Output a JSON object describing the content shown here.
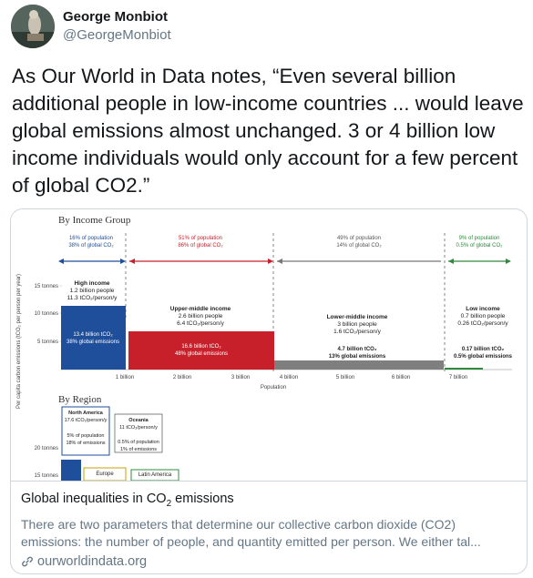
{
  "author": {
    "name": "George Monbiot",
    "handle": "@GeorgeMonbiot"
  },
  "tweet": {
    "text": "As Our World in Data notes, “Even several billion additional people in low-income countries ... would leave global emissions almost unchanged. 3 or 4 billion low income individuals would only account for a few percent of global CO2.”"
  },
  "card": {
    "title_prefix": "Global inequalities in CO",
    "title_sub": "2",
    "title_suffix": " emissions",
    "description": "There are two parameters that determine our collective carbon dioxide (CO2) emissions: the number of people, and quantity emitted per person. We either tal...",
    "domain": "ourworldindata.org",
    "link_icon": "link-icon"
  },
  "figure": {
    "income_heading": "By Income Group",
    "region_heading": "By Region",
    "y_axis_label": "Per capita carbon emissions (tCO₂ per person per year)",
    "y_ticks": [
      "15 tonnes",
      "10 tonnes",
      "5 tonnes"
    ],
    "x_ticks": [
      "1 billion",
      "2 billion",
      "3 billion",
      "4 billion",
      "5 billion",
      "6 billion",
      "7 billion"
    ],
    "x_axis_label": "Population",
    "shares": [
      {
        "pop": "16% of population",
        "co2": "38% of global CO₂"
      },
      {
        "pop": "51% of population",
        "co2": "86% of global CO₂"
      },
      {
        "pop": "49% of population",
        "co2": "14% of global CO₂"
      },
      {
        "pop": "9% of population",
        "co2": "0.5% of global CO₂"
      }
    ],
    "groups": [
      {
        "name": "High income",
        "people": "1.2 billion people",
        "per_person": "11.3 tCO₂/person/y",
        "total": "13.4 billion tCO₂",
        "share": "38% global emissions",
        "color": "#1f4e9a"
      },
      {
        "name": "Upper-middle income",
        "people": "2.6 billion people",
        "per_person": "6.4 tCO₂/person/y",
        "total": "16.6 billion tCO₂",
        "share": "48% global emissions",
        "color": "#c8202b"
      },
      {
        "name": "Lower-middle income",
        "people": "3 billion people",
        "per_person": "1.6 tCO₂/person/y",
        "total": "4.7 billion tCO₂",
        "share": "13% global emissions",
        "color": "#7f7f7f"
      },
      {
        "name": "Low income",
        "people": "0.7 billion people",
        "per_person": "0.26 tCO₂/person/y",
        "total": "0.17 billion tCO₂",
        "share": "0.5% global emissions",
        "color": "#2e8b3e"
      }
    ],
    "region_y_ticks": [
      "20 tonnes",
      "15 tonnes"
    ],
    "regions": [
      {
        "name": "North America",
        "per_person": "17.6 tCO₂/person/y",
        "pop": "5% of population",
        "emis": "18% of emissions"
      },
      {
        "name": "Oceania",
        "per_person": "11 tCO₂/person/y",
        "pop": "0.5% of population",
        "emis": "1% of emissions"
      },
      {
        "name": "Europe"
      },
      {
        "name": "Latin America"
      }
    ]
  }
}
